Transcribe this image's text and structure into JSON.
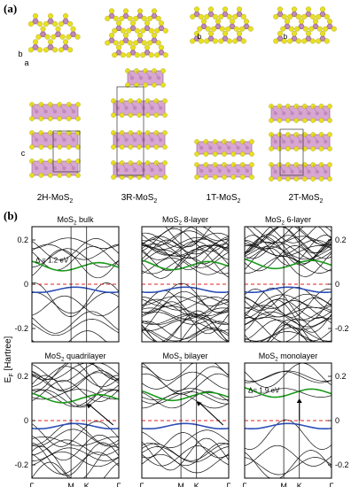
{
  "figure": {
    "panel_a_label": "(a)",
    "panel_b_label": "(b)"
  },
  "structures": [
    {
      "name": "2H-MoS",
      "sub": "2"
    },
    {
      "name": "3R-MoS",
      "sub": "2"
    },
    {
      "name": "1T-MoS",
      "sub": "2"
    },
    {
      "name": "2T-MoS",
      "sub": "2"
    }
  ],
  "axis_letters": {
    "a": "a",
    "b": "b",
    "c": "c"
  },
  "bands": {
    "y_axis_label": "E",
    "y_axis_sub": "F",
    "y_axis_unit": " [Hartree]",
    "y_ticks": [
      "0.2",
      "0",
      "-0.2"
    ],
    "x_ticks": [
      "Γ",
      "M",
      "K",
      "Γ"
    ],
    "panels": [
      {
        "title": "MoS",
        "sub": "2",
        "suffix": " bulk",
        "gap_label": "Δ = 1.2 eV"
      },
      {
        "title": "MoS",
        "sub": "2",
        "suffix": " 8-layer",
        "gap_label": ""
      },
      {
        "title": "MoS",
        "sub": "2",
        "suffix": " 6-layer",
        "gap_label": ""
      },
      {
        "title": "MoS",
        "sub": "2",
        "suffix": " quadrilayer",
        "gap_label": ""
      },
      {
        "title": "MoS",
        "sub": "2",
        "suffix": " bilayer",
        "gap_label": ""
      },
      {
        "title": "MoS",
        "sub": "2",
        "suffix": " monolayer",
        "gap_label": "Δ= 1.9 eV"
      }
    ]
  },
  "colors": {
    "conduction": "#1a9a1a",
    "valence": "#2c4fb8",
    "fermi": "#e02020",
    "atom_s": "#e8e020",
    "atom_mo": "#c08ab8",
    "poly": "#d8a6d2"
  }
}
